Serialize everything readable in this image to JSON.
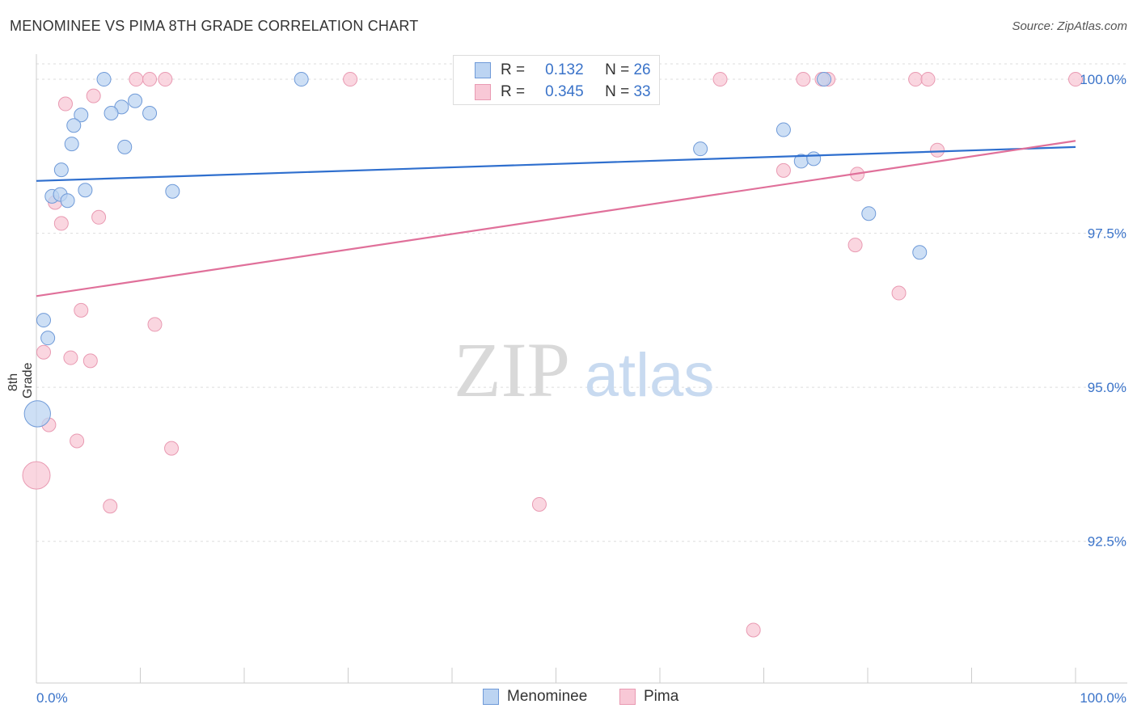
{
  "title": "MENOMINEE VS PIMA 8TH GRADE CORRELATION CHART",
  "source": "Source: ZipAtlas.com",
  "watermark": {
    "zip": "ZIP",
    "atlas": "atlas"
  },
  "stats": [
    {
      "r_label": "R =",
      "r_value": "0.132",
      "n_label": "N =",
      "n_value": "26"
    },
    {
      "r_label": "R =",
      "r_value": "0.345",
      "n_label": "N =",
      "n_value": "33"
    }
  ],
  "legend": [
    "Menominee",
    "Pima"
  ],
  "colors": {
    "blue_fill": "#bcd4f2",
    "blue_stroke": "#6f9ad8",
    "blue_line": "#2f6fce",
    "pink_fill": "#f8c8d6",
    "pink_stroke": "#e99ab2",
    "pink_line": "#e0709a",
    "axis_text": "#3a73c9"
  },
  "chart_data": {
    "type": "scatter",
    "title": "MENOMINEE VS PIMA 8TH GRADE CORRELATION CHART",
    "xlabel": "",
    "ylabel": "8th Grade",
    "xlim": [
      0,
      100
    ],
    "ylim": [
      90.2,
      100.25
    ],
    "x_tick_labels": [
      "0.0%",
      "100.0%"
    ],
    "y_ticks": [
      {
        "value": 100.0,
        "label": "100.0%"
      },
      {
        "value": 97.5,
        "label": "97.5%"
      },
      {
        "value": 95.0,
        "label": "95.0%"
      },
      {
        "value": 92.5,
        "label": "92.5%"
      }
    ],
    "grid": true,
    "series": [
      {
        "name": "Menominee",
        "r": 0.132,
        "n": 26,
        "trend": [
          [
            0,
            98.35
          ],
          [
            100,
            98.9
          ]
        ],
        "points": [
          {
            "x": 6.5,
            "y": 100.0,
            "s": 1
          },
          {
            "x": 25.5,
            "y": 100.0,
            "s": 1
          },
          {
            "x": 75.8,
            "y": 100.0,
            "s": 1
          },
          {
            "x": 9.5,
            "y": 99.65,
            "s": 1
          },
          {
            "x": 8.2,
            "y": 99.55,
            "s": 1
          },
          {
            "x": 7.2,
            "y": 99.45,
            "s": 1
          },
          {
            "x": 4.3,
            "y": 99.42,
            "s": 1
          },
          {
            "x": 10.9,
            "y": 99.45,
            "s": 1
          },
          {
            "x": 3.6,
            "y": 99.25,
            "s": 1
          },
          {
            "x": 3.4,
            "y": 98.95,
            "s": 1
          },
          {
            "x": 8.5,
            "y": 98.9,
            "s": 1
          },
          {
            "x": 63.9,
            "y": 98.87,
            "s": 1
          },
          {
            "x": 71.9,
            "y": 99.18,
            "s": 1
          },
          {
            "x": 73.6,
            "y": 98.67,
            "s": 1
          },
          {
            "x": 74.8,
            "y": 98.71,
            "s": 1
          },
          {
            "x": 2.4,
            "y": 98.53,
            "s": 1
          },
          {
            "x": 1.5,
            "y": 98.1,
            "s": 1
          },
          {
            "x": 2.3,
            "y": 98.13,
            "s": 1
          },
          {
            "x": 4.7,
            "y": 98.2,
            "s": 1
          },
          {
            "x": 13.1,
            "y": 98.18,
            "s": 1
          },
          {
            "x": 3.0,
            "y": 98.03,
            "s": 1
          },
          {
            "x": 80.1,
            "y": 97.82,
            "s": 1
          },
          {
            "x": 85.0,
            "y": 97.19,
            "s": 1
          },
          {
            "x": 0.7,
            "y": 96.09,
            "s": 1
          },
          {
            "x": 1.1,
            "y": 95.8,
            "s": 1
          },
          {
            "x": 0.1,
            "y": 94.57,
            "s": 1.9
          }
        ]
      },
      {
        "name": "Pima",
        "r": 0.345,
        "n": 33,
        "trend": [
          [
            0,
            96.48
          ],
          [
            100,
            99.0
          ]
        ],
        "points": [
          {
            "x": 9.6,
            "y": 100.0,
            "s": 1
          },
          {
            "x": 10.9,
            "y": 100.0,
            "s": 1
          },
          {
            "x": 12.4,
            "y": 100.0,
            "s": 1
          },
          {
            "x": 30.2,
            "y": 100.0,
            "s": 1
          },
          {
            "x": 65.8,
            "y": 100.0,
            "s": 1
          },
          {
            "x": 73.8,
            "y": 100.0,
            "s": 1
          },
          {
            "x": 76.2,
            "y": 100.0,
            "s": 1
          },
          {
            "x": 75.6,
            "y": 100.0,
            "s": 1
          },
          {
            "x": 84.6,
            "y": 100.0,
            "s": 1
          },
          {
            "x": 85.8,
            "y": 100.0,
            "s": 1
          },
          {
            "x": 100.0,
            "y": 100.0,
            "s": 1
          },
          {
            "x": 5.5,
            "y": 99.73,
            "s": 1
          },
          {
            "x": 2.8,
            "y": 99.6,
            "s": 1
          },
          {
            "x": 86.7,
            "y": 98.85,
            "s": 1
          },
          {
            "x": 71.9,
            "y": 98.52,
            "s": 1
          },
          {
            "x": 79.0,
            "y": 98.46,
            "s": 1
          },
          {
            "x": 1.8,
            "y": 98.0,
            "s": 1
          },
          {
            "x": 6.0,
            "y": 97.76,
            "s": 1
          },
          {
            "x": 2.4,
            "y": 97.66,
            "s": 1
          },
          {
            "x": 78.8,
            "y": 97.31,
            "s": 1
          },
          {
            "x": 83.0,
            "y": 96.53,
            "s": 1
          },
          {
            "x": 4.3,
            "y": 96.25,
            "s": 1
          },
          {
            "x": 11.4,
            "y": 96.02,
            "s": 1
          },
          {
            "x": 0.7,
            "y": 95.57,
            "s": 1
          },
          {
            "x": 3.3,
            "y": 95.48,
            "s": 1
          },
          {
            "x": 5.2,
            "y": 95.43,
            "s": 1
          },
          {
            "x": 1.2,
            "y": 94.39,
            "s": 1
          },
          {
            "x": 3.9,
            "y": 94.13,
            "s": 1
          },
          {
            "x": 13.0,
            "y": 94.01,
            "s": 1
          },
          {
            "x": 0.0,
            "y": 93.57,
            "s": 2.0
          },
          {
            "x": 7.1,
            "y": 93.07,
            "s": 1
          },
          {
            "x": 48.4,
            "y": 93.1,
            "s": 1
          },
          {
            "x": 69.0,
            "y": 91.06,
            "s": 1
          }
        ]
      }
    ]
  }
}
